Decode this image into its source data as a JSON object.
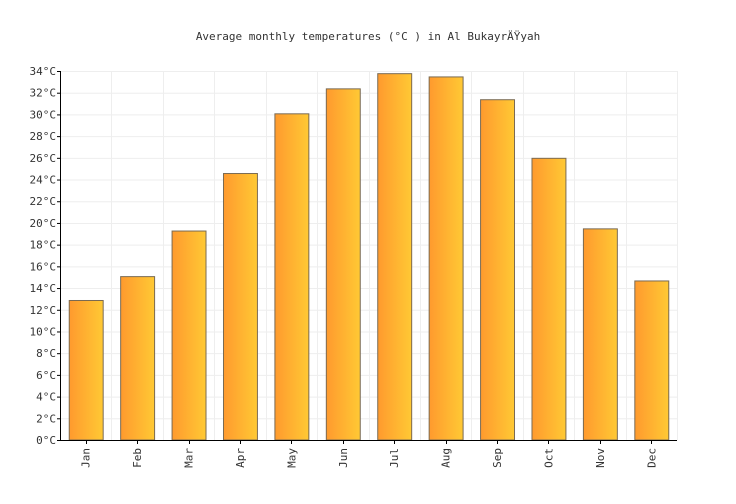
{
  "chart_data": {
    "type": "bar",
    "title": "Average monthly temperatures (°C ) in Al BukayrÄŸyah",
    "xlabel": "",
    "ylabel": "",
    "categories": [
      "Jan",
      "Feb",
      "Mar",
      "Apr",
      "May",
      "Jun",
      "Jul",
      "Aug",
      "Sep",
      "Oct",
      "Nov",
      "Dec"
    ],
    "values": [
      12.9,
      15.1,
      19.3,
      24.6,
      30.1,
      32.4,
      33.8,
      33.5,
      31.4,
      26.0,
      19.5,
      14.7
    ],
    "ylim": [
      0,
      34
    ],
    "yticks": [
      0,
      2,
      4,
      6,
      8,
      10,
      12,
      14,
      16,
      18,
      20,
      22,
      24,
      26,
      28,
      30,
      32,
      34
    ],
    "ytick_suffix": "°C",
    "grid": true,
    "legend": "none",
    "colors": {
      "bar_left": "#ff9a2e",
      "bar_right": "#ffc934",
      "bar_stroke": "#7a6a52",
      "grid": "#eeeeee",
      "axis": "#000000",
      "text": "#333333"
    }
  }
}
